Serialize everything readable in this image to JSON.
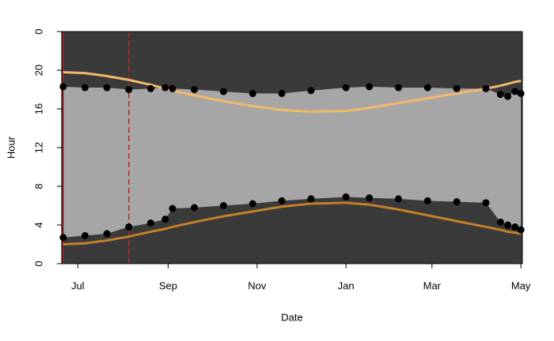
{
  "chart_data": {
    "type": "line",
    "x_label": "Date",
    "y_label": "Hour",
    "background": "#3a3a3a",
    "x": [
      -10,
      5,
      20,
      35,
      50,
      60,
      65,
      80,
      100,
      120,
      140,
      160,
      184,
      200,
      220,
      240,
      260,
      280,
      290,
      295,
      300,
      304
    ],
    "xlim": [
      -11,
      305
    ],
    "xticks": [
      {
        "value": 0,
        "label": "Jul"
      },
      {
        "value": 62,
        "label": "Sep"
      },
      {
        "value": 123,
        "label": "Nov"
      },
      {
        "value": 184,
        "label": "Jan"
      },
      {
        "value": 243,
        "label": "Mar"
      },
      {
        "value": 304,
        "label": "May"
      }
    ],
    "ylim": [
      0,
      24
    ],
    "yticks": [
      {
        "value": 24,
        "label": "0"
      },
      20,
      16,
      12,
      8,
      4,
      0
    ],
    "reference_x": [
      {
        "value": -10,
        "color": "#b0202a",
        "dashed": false
      },
      {
        "value": 35,
        "color": "#c0202a",
        "dashed": true
      }
    ],
    "band": {
      "color": "#ffffff",
      "from_series": 3,
      "to_series": 2
    },
    "series": [
      {
        "style": "line",
        "color": "#f5b86a",
        "values": [
          19.8,
          19.7,
          19.4,
          19.0,
          18.5,
          18.1,
          17.9,
          17.4,
          16.8,
          16.3,
          15.9,
          15.7,
          15.8,
          16.1,
          16.6,
          17.1,
          17.6,
          18.1,
          18.4,
          18.6,
          18.8,
          18.9
        ]
      },
      {
        "style": "line",
        "color": "#c57f2a",
        "values": [
          2.0,
          2.1,
          2.4,
          2.8,
          3.3,
          3.6,
          3.8,
          4.3,
          4.9,
          5.4,
          5.9,
          6.2,
          6.3,
          6.1,
          5.6,
          5.0,
          4.4,
          3.8,
          3.5,
          3.3,
          3.2,
          3.1
        ]
      },
      {
        "style": "dots",
        "color": "#000000",
        "values": [
          18.3,
          18.2,
          18.2,
          18.0,
          18.1,
          18.2,
          18.1,
          18.0,
          17.8,
          17.6,
          17.6,
          17.9,
          18.2,
          18.3,
          18.2,
          18.2,
          18.1,
          18.1,
          17.5,
          17.3,
          17.8,
          17.6
        ]
      },
      {
        "style": "dots",
        "color": "#000000",
        "values": [
          2.7,
          2.9,
          3.1,
          3.8,
          4.2,
          4.6,
          5.7,
          5.8,
          6.0,
          6.2,
          6.5,
          6.7,
          6.9,
          6.8,
          6.7,
          6.5,
          6.4,
          6.3,
          4.3,
          4.0,
          3.8,
          3.5
        ]
      }
    ]
  }
}
